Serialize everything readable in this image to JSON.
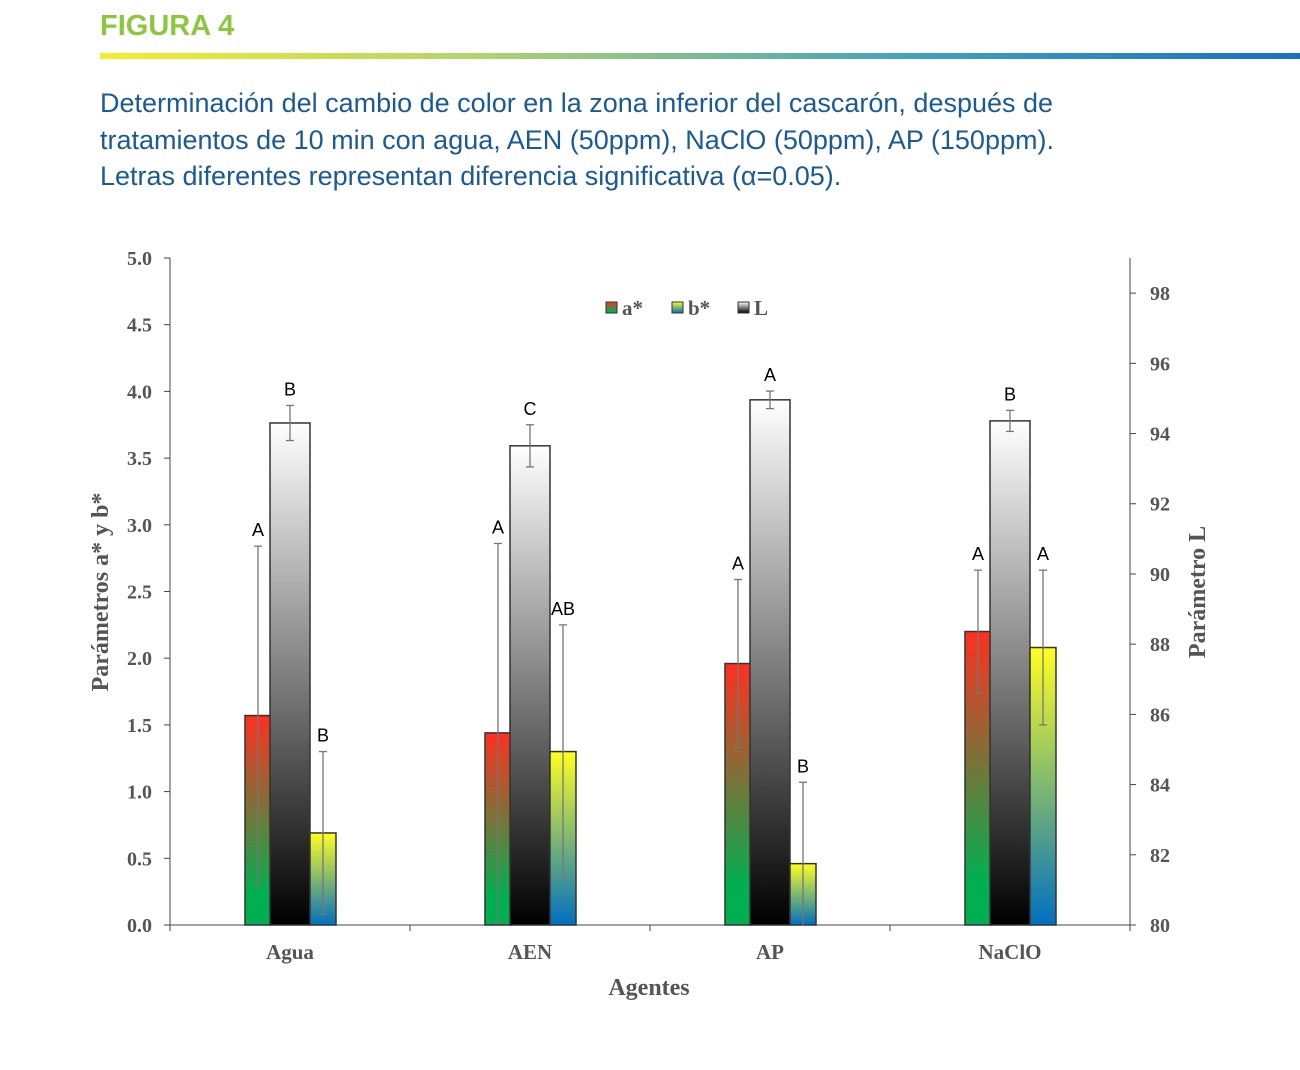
{
  "figure_label": "FIGURA 4",
  "caption": [
    "Determinación del cambio de color en la zona inferior del cascarón, después de",
    "tratamientos de 10 min con agua, AEN (50ppm), NaClO (50ppm), AP (150ppm).",
    "Letras diferentes representan diferencia significativa (α=0.05)."
  ],
  "chart_data": {
    "type": "bar",
    "xlabel": "Agentes",
    "ylabel": "Parámetros a* y b*",
    "y2label": "Parámetro L",
    "ylim": [
      0,
      5
    ],
    "y2lim": [
      80,
      99
    ],
    "yticks": [
      "0.0",
      "0.5",
      "1.0",
      "1.5",
      "2.0",
      "2.5",
      "3.0",
      "3.5",
      "4.0",
      "4.5",
      "5.0"
    ],
    "y2ticks": [
      "80",
      "82",
      "84",
      "86",
      "88",
      "90",
      "92",
      "94",
      "96",
      "98"
    ],
    "legend_position": "top-center",
    "categories": [
      "Agua",
      "AEN",
      "AP",
      "NaClO"
    ],
    "series": [
      {
        "name": "a*",
        "axis": "left",
        "values": [
          1.57,
          1.44,
          1.96,
          2.2
        ],
        "errors": [
          1.27,
          1.42,
          0.63,
          0.46
        ],
        "letters": [
          "A",
          "A",
          "A",
          "A"
        ],
        "colors": [
          "#00b050",
          "#ff3020"
        ]
      },
      {
        "name": "L",
        "axis": "right",
        "values": [
          94.3,
          93.65,
          94.96,
          94.36
        ],
        "errors": [
          0.5,
          0.6,
          0.25,
          0.3
        ],
        "letters": [
          "B",
          "C",
          "A",
          "B"
        ],
        "colors": [
          "#000000",
          "#ffffff"
        ]
      },
      {
        "name": "b*",
        "axis": "left",
        "values": [
          0.69,
          1.3,
          0.46,
          2.08
        ],
        "errors": [
          0.61,
          0.95,
          0.61,
          0.58
        ],
        "letters": [
          "B",
          "AB",
          "B",
          "A"
        ],
        "colors": [
          "#0070c0",
          "#ffff20"
        ]
      }
    ]
  }
}
